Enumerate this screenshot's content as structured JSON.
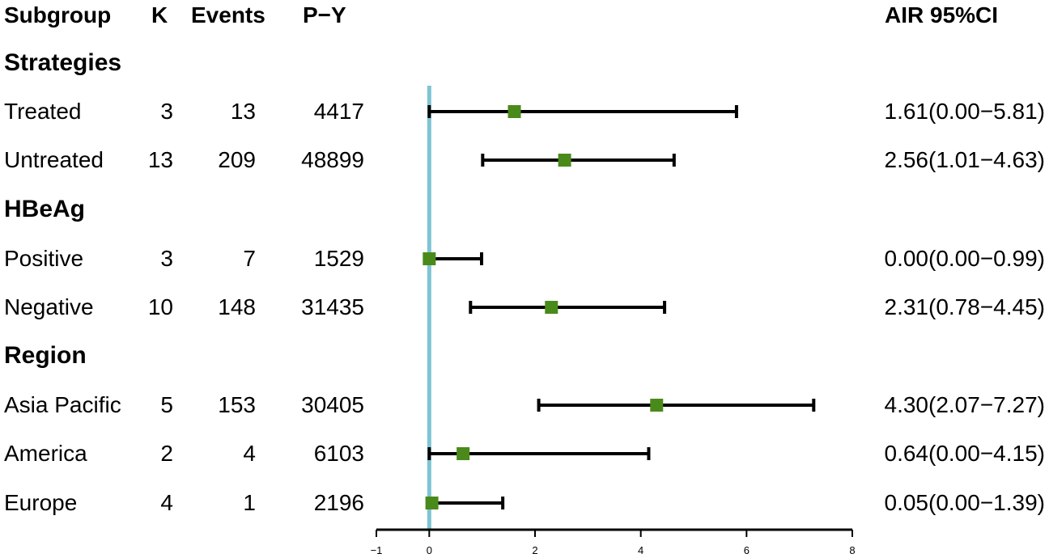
{
  "headers": {
    "subgroup": "Subgroup",
    "k": "K",
    "events": "Events",
    "py": "P−Y",
    "air": "AIR 95%CI"
  },
  "groups": [
    {
      "label": "Strategies",
      "rows": [
        {
          "subgroup": "Treated",
          "k": "3",
          "events": "13",
          "py": "4417",
          "ci_text": "1.61(0.00−5.81)"
        },
        {
          "subgroup": "Untreated",
          "k": "13",
          "events": "209",
          "py": "48899",
          "ci_text": "2.56(1.01−4.63)"
        }
      ]
    },
    {
      "label": "HBeAg",
      "rows": [
        {
          "subgroup": "Positive",
          "k": "3",
          "events": "7",
          "py": "1529",
          "ci_text": "0.00(0.00−0.99)"
        },
        {
          "subgroup": "Negative",
          "k": "10",
          "events": "148",
          "py": "31435",
          "ci_text": "2.31(0.78−4.45)"
        }
      ]
    },
    {
      "label": "Region",
      "rows": [
        {
          "subgroup": "Asia Pacific",
          "k": "5",
          "events": "153",
          "py": "30405",
          "ci_text": "4.30(2.07−7.27)"
        },
        {
          "subgroup": "America",
          "k": "2",
          "events": "4",
          "py": "6103",
          "ci_text": "0.64(0.00−4.15)"
        },
        {
          "subgroup": "Europe",
          "k": "4",
          "events": "1",
          "py": "2196",
          "ci_text": "0.05(0.00−1.39)"
        }
      ]
    }
  ],
  "chart_data": {
    "type": "forest",
    "xlim": [
      -1,
      8
    ],
    "x_ticks": [
      -1,
      0,
      2,
      4,
      6,
      8
    ],
    "x_tick_labels": [
      "−1",
      "0",
      "2",
      "4",
      "6",
      "8"
    ],
    "reference_line": 0,
    "grid": false,
    "colors": {
      "point": "#4a8a1a",
      "reference": "#7ec4d4",
      "line": "#000000"
    },
    "points": [
      {
        "label": "Treated",
        "estimate": 1.61,
        "lower": 0.0,
        "upper": 5.81
      },
      {
        "label": "Untreated",
        "estimate": 2.56,
        "lower": 1.01,
        "upper": 4.63
      },
      {
        "label": "Positive",
        "estimate": 0.0,
        "lower": 0.0,
        "upper": 0.99
      },
      {
        "label": "Negative",
        "estimate": 2.31,
        "lower": 0.78,
        "upper": 4.45
      },
      {
        "label": "Asia Pacific",
        "estimate": 4.3,
        "lower": 2.07,
        "upper": 7.27
      },
      {
        "label": "America",
        "estimate": 0.64,
        "lower": 0.0,
        "upper": 4.15
      },
      {
        "label": "Europe",
        "estimate": 0.05,
        "lower": 0.0,
        "upper": 1.39
      }
    ]
  }
}
